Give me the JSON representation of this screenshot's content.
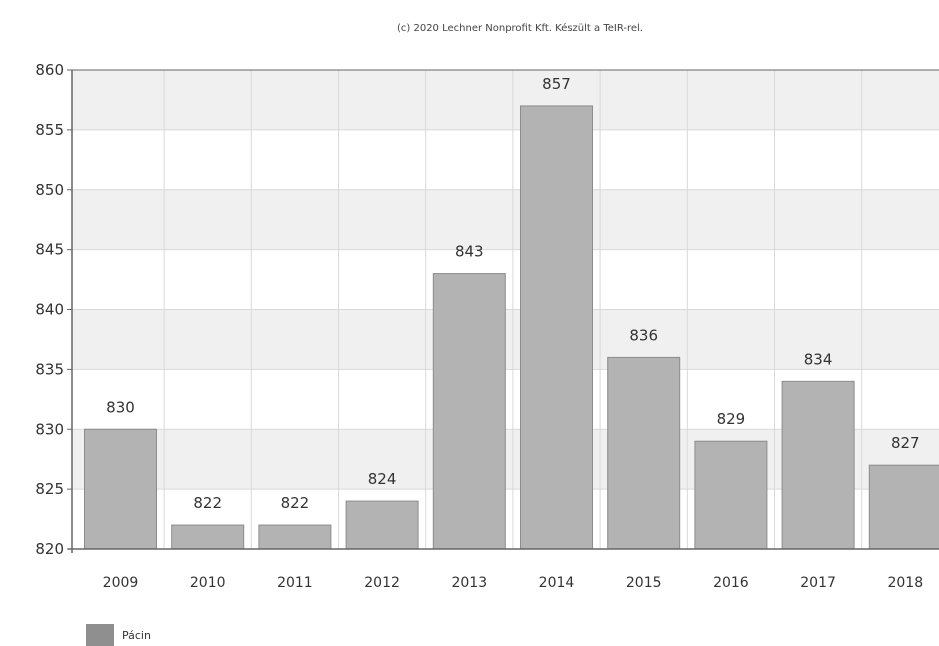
{
  "credit": "(c) 2020 Lechner Nonprofit Kft. Készült a TeIR-rel.",
  "colors": {
    "bar_fill": "#b3b3b3",
    "bar_stroke": "#8c8c8c",
    "band_fill": "#f0f0f0",
    "grid": "#d9d9d9",
    "axis": "#666666",
    "legend_swatch": "#8f8f8f"
  },
  "chart_data": {
    "type": "bar",
    "categories": [
      "2009",
      "2010",
      "2011",
      "2012",
      "2013",
      "2014",
      "2015",
      "2016",
      "2017",
      "2018"
    ],
    "series": [
      {
        "name": "Pácin",
        "values": [
          830,
          822,
          822,
          824,
          843,
          857,
          836,
          829,
          834,
          827
        ]
      }
    ],
    "ylim": [
      820,
      860
    ],
    "yticks": [
      820,
      825,
      830,
      835,
      840,
      845,
      850,
      855,
      860
    ],
    "grid": true,
    "data_labels": true,
    "legend_position": "bottom-left",
    "title": "",
    "xlabel": "",
    "ylabel": ""
  }
}
